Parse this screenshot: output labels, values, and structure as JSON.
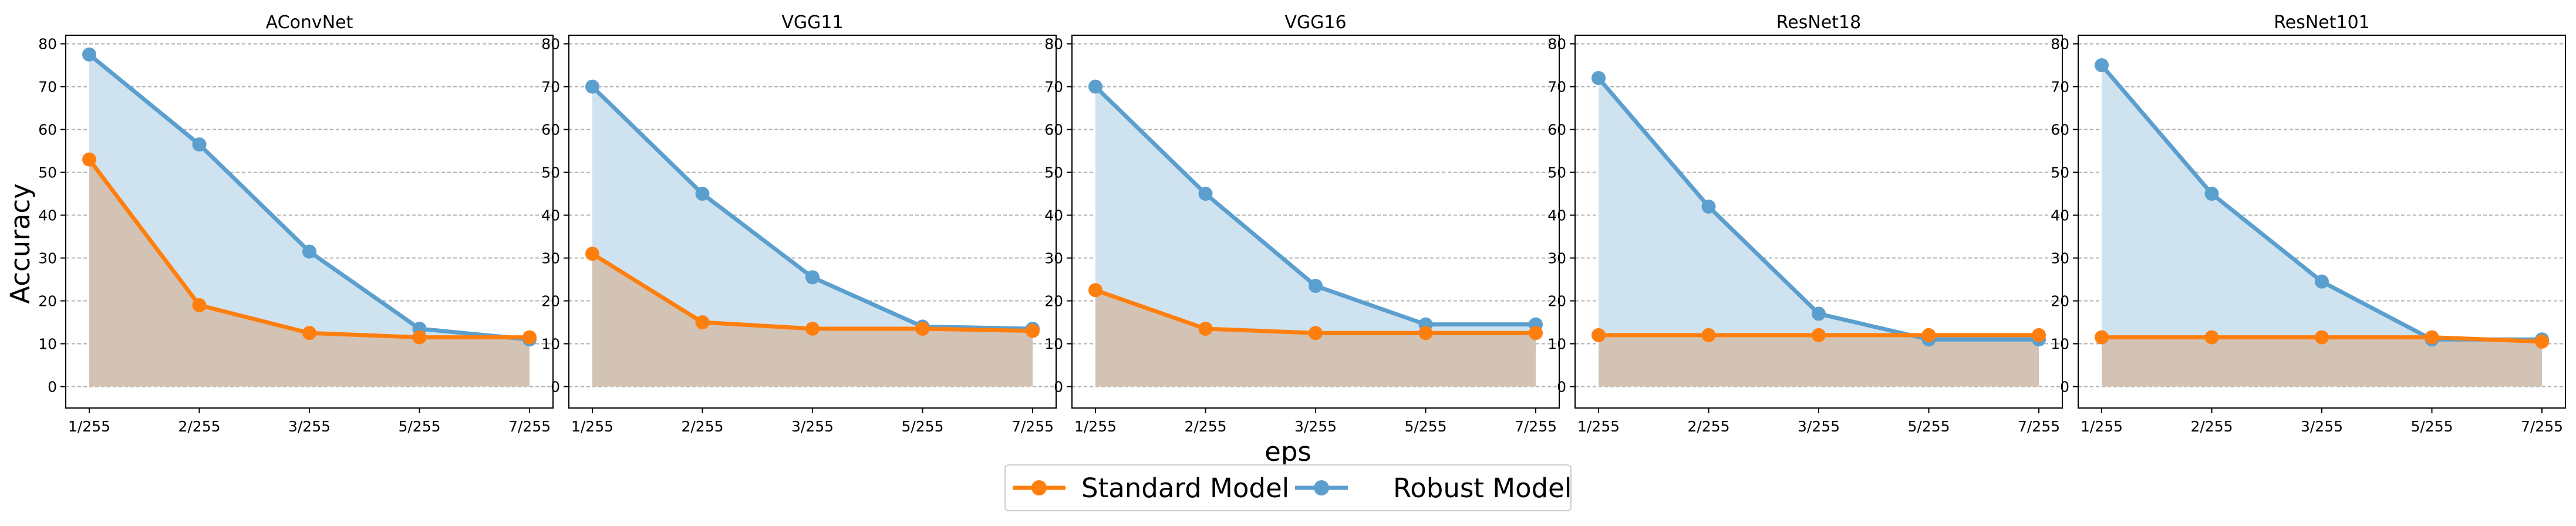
{
  "chart_data": {
    "type": "line",
    "xlabel": "eps",
    "ylabel": "Accuracy",
    "categories": [
      "1/255",
      "2/255",
      "3/255",
      "5/255",
      "7/255"
    ],
    "yticks": [
      0,
      10,
      20,
      30,
      40,
      50,
      60,
      70,
      80
    ],
    "ylim": [
      -5,
      82
    ],
    "grid": "horizontal dashed",
    "legend_position": "bottom-center",
    "series_styles": [
      {
        "name": "Standard Model",
        "color": "#ff7f0e"
      },
      {
        "name": "Robust Model",
        "color": "#5b9fcf"
      }
    ],
    "fill_colors": {
      "robust": "#cfe2f0",
      "standard": "#d3c3b5"
    },
    "panels": [
      {
        "title": "AConvNet",
        "series": [
          {
            "name": "Standard Model",
            "values": [
              53,
              19,
              12.5,
              11.5,
              11.5
            ]
          },
          {
            "name": "Robust Model",
            "values": [
              77.5,
              56.5,
              31.5,
              13.5,
              11
            ]
          }
        ]
      },
      {
        "title": "VGG11",
        "series": [
          {
            "name": "Standard Model",
            "values": [
              31,
              15,
              13.5,
              13.5,
              13
            ]
          },
          {
            "name": "Robust Model",
            "values": [
              70,
              45,
              25.5,
              14,
              13.5
            ]
          }
        ]
      },
      {
        "title": "VGG16",
        "series": [
          {
            "name": "Standard Model",
            "values": [
              22.5,
              13.5,
              12.5,
              12.5,
              12.5
            ]
          },
          {
            "name": "Robust Model",
            "values": [
              70,
              45,
              23.5,
              14.5,
              14.5
            ]
          }
        ]
      },
      {
        "title": "ResNet18",
        "series": [
          {
            "name": "Standard Model",
            "values": [
              12,
              12,
              12,
              12,
              12
            ]
          },
          {
            "name": "Robust Model",
            "values": [
              72,
              42,
              17,
              11,
              11
            ]
          }
        ]
      },
      {
        "title": "ResNet101",
        "series": [
          {
            "name": "Standard Model",
            "values": [
              11.5,
              11.5,
              11.5,
              11.5,
              10.5
            ]
          },
          {
            "name": "Robust Model",
            "values": [
              75,
              45,
              24.5,
              11,
              11
            ]
          }
        ]
      }
    ],
    "legend": [
      "Standard Model",
      "Robust Model"
    ]
  }
}
